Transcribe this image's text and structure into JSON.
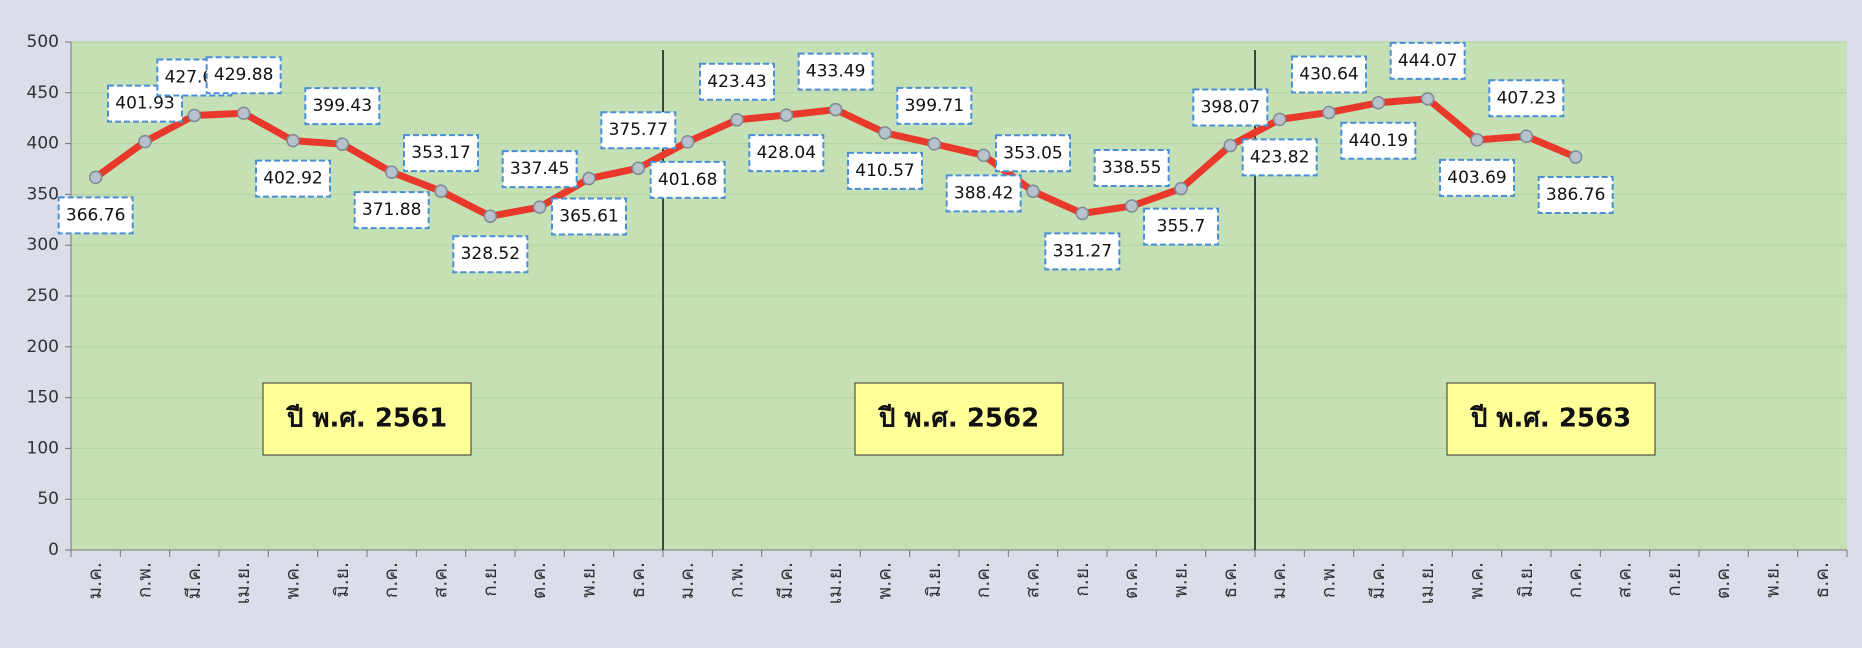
{
  "chart_data": {
    "type": "line",
    "categories": [
      "ม.ค.",
      "ก.พ.",
      "มี.ค.",
      "เม.ย.",
      "พ.ค.",
      "มิ.ย.",
      "ก.ค.",
      "ส.ค.",
      "ก.ย.",
      "ต.ค.",
      "พ.ย.",
      "ธ.ค.",
      "ม.ค.",
      "ก.พ.",
      "มี.ค.",
      "เม.ย.",
      "พ.ค.",
      "มิ.ย.",
      "ก.ค.",
      "ส.ค.",
      "ก.ย.",
      "ต.ค.",
      "พ.ย.",
      "ธ.ค.",
      "ม.ค.",
      "ก.พ.",
      "มี.ค.",
      "เม.ย.",
      "พ.ค.",
      "มิ.ย.",
      "ก.ค.",
      "ส.ค.",
      "ก.ย.",
      "ต.ค.",
      "พ.ย.",
      "ธ.ค."
    ],
    "series": [
      {
        "color": "#e8392a",
        "values": [
          366.76,
          401.93,
          427.69,
          429.88,
          402.92,
          399.43,
          371.88,
          353.17,
          328.52,
          337.45,
          365.61,
          375.77,
          401.68,
          423.43,
          428.04,
          433.49,
          410.57,
          399.71,
          388.42,
          353.05,
          331.27,
          338.55,
          355.7,
          398.07,
          423.82,
          430.64,
          440.19,
          444.07,
          403.69,
          407.23,
          386.76,
          null,
          null,
          null,
          null,
          null
        ]
      }
    ],
    "annotations": [
      "ปี พ.ศ. 2561",
      "ปี พ.ศ. 2562",
      "ปี พ.ศ. 2563"
    ],
    "ylim": [
      0,
      500
    ],
    "yticks": [
      0,
      50,
      100,
      150,
      200,
      250,
      300,
      350,
      400,
      450,
      500
    ],
    "grid": true
  }
}
